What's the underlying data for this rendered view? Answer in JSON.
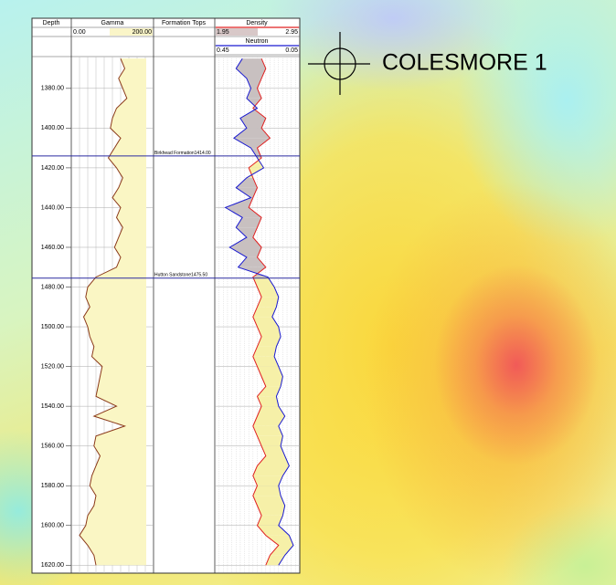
{
  "well_name": "COLESMORE 1",
  "chart_data": {
    "type": "well_log",
    "depth_label": "Depth",
    "tops_label": "Formation Tops",
    "ylim": [
      1364,
      1624
    ],
    "yticks": [
      {
        "value": 1380,
        "label": "1380.00"
      },
      {
        "value": 1400,
        "label": "1400.00"
      },
      {
        "value": 1420,
        "label": "1420.00"
      },
      {
        "value": 1440,
        "label": "1440.00"
      },
      {
        "value": 1460,
        "label": "1460.00"
      },
      {
        "value": 1480,
        "label": "1480.00"
      },
      {
        "value": 1500,
        "label": "1500.00"
      },
      {
        "value": 1520,
        "label": "1520.00"
      },
      {
        "value": 1540,
        "label": "1540.00"
      },
      {
        "value": 1560,
        "label": "1560.00"
      },
      {
        "value": 1580,
        "label": "1580.00"
      },
      {
        "value": 1600,
        "label": "1600.00"
      },
      {
        "value": 1620,
        "label": "1620.00"
      }
    ],
    "tops": [
      {
        "name": "Birkhead Formation",
        "depth": 1414,
        "label": "1414.00"
      },
      {
        "name": "Hutton Sandstone",
        "depth": 1475.5,
        "label": "1475.50"
      }
    ],
    "depth": [
      1365,
      1370,
      1375,
      1380,
      1385,
      1390,
      1395,
      1400,
      1405,
      1410,
      1415,
      1420,
      1425,
      1430,
      1435,
      1440,
      1445,
      1450,
      1455,
      1460,
      1465,
      1470,
      1475,
      1480,
      1485,
      1490,
      1495,
      1500,
      1505,
      1510,
      1515,
      1520,
      1525,
      1530,
      1535,
      1540,
      1545,
      1550,
      1555,
      1560,
      1565,
      1570,
      1575,
      1580,
      1585,
      1590,
      1595,
      1600,
      1605,
      1610,
      1615,
      1620
    ],
    "tracks": [
      {
        "name": "Gamma",
        "color": "#8b3a1a",
        "xlim": [
          0,
          200
        ],
        "xticks": [
          {
            "value": 0,
            "label": "0.00"
          },
          {
            "value": 200,
            "label": "200.00"
          }
        ],
        "values": [
          120,
          130,
          115,
          125,
          135,
          110,
          100,
          95,
          120,
          105,
          90,
          110,
          125,
          115,
          100,
          120,
          110,
          125,
          115,
          105,
          120,
          110,
          60,
          40,
          35,
          45,
          30,
          40,
          45,
          55,
          50,
          75,
          70,
          65,
          60,
          110,
          55,
          130,
          60,
          55,
          70,
          60,
          50,
          45,
          60,
          55,
          40,
          35,
          20,
          40,
          55,
          60
        ]
      },
      {
        "name": "Density",
        "color": "#e02020",
        "xlim": [
          1.95,
          2.95
        ],
        "xticks": [
          1.95,
          2.95
        ],
        "values": [
          2.5,
          2.55,
          2.5,
          2.45,
          2.5,
          2.4,
          2.55,
          2.5,
          2.6,
          2.45,
          2.5,
          2.35,
          2.4,
          2.45,
          2.4,
          2.35,
          2.5,
          2.45,
          2.4,
          2.5,
          2.45,
          2.55,
          2.4,
          2.45,
          2.5,
          2.45,
          2.4,
          2.45,
          2.5,
          2.45,
          2.4,
          2.45,
          2.5,
          2.55,
          2.45,
          2.5,
          2.45,
          2.4,
          2.45,
          2.5,
          2.55,
          2.45,
          2.4,
          2.45,
          2.4,
          2.45,
          2.5,
          2.45,
          2.55,
          2.7,
          2.6,
          2.55
        ]
      },
      {
        "name": "Neutron",
        "color": "#1a1ad0",
        "xlim": [
          0.45,
          0.05
        ],
        "xticks": [
          0.45,
          0.05
        ],
        "values": [
          0.32,
          0.35,
          0.3,
          0.28,
          0.3,
          0.25,
          0.33,
          0.3,
          0.36,
          0.28,
          0.25,
          0.22,
          0.3,
          0.35,
          0.28,
          0.4,
          0.32,
          0.35,
          0.3,
          0.38,
          0.3,
          0.34,
          0.2,
          0.17,
          0.15,
          0.16,
          0.18,
          0.15,
          0.14,
          0.16,
          0.17,
          0.15,
          0.13,
          0.14,
          0.16,
          0.15,
          0.12,
          0.15,
          0.13,
          0.14,
          0.12,
          0.1,
          0.13,
          0.15,
          0.14,
          0.12,
          0.13,
          0.15,
          0.1,
          0.08,
          0.12,
          0.15
        ]
      }
    ]
  }
}
